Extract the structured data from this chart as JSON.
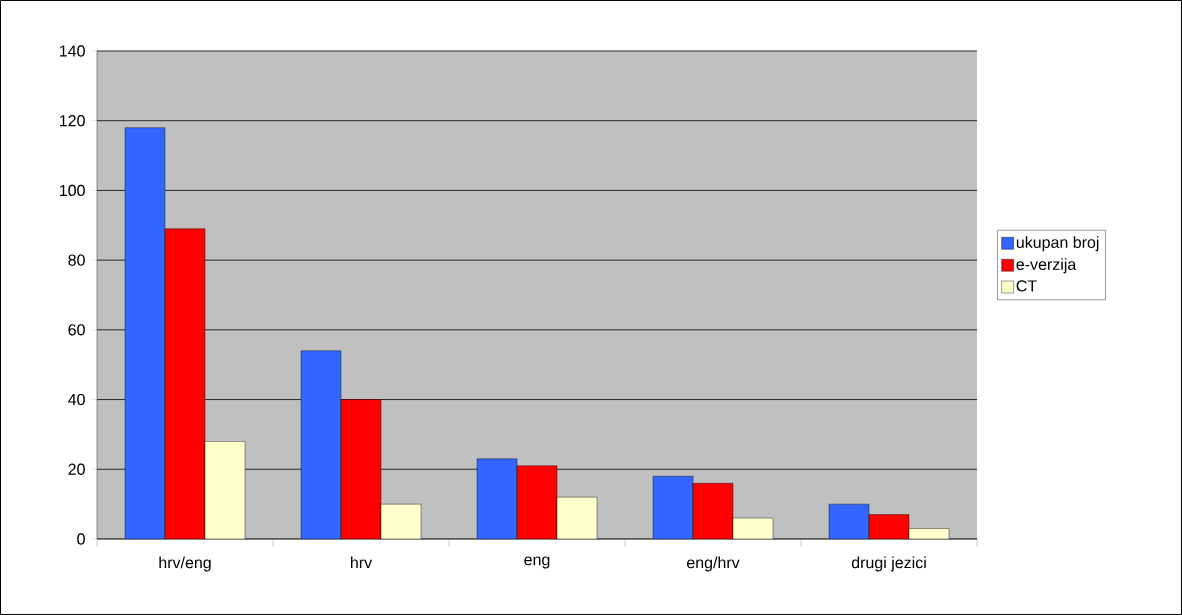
{
  "chart_data": {
    "type": "bar",
    "categories": [
      "hrv/eng",
      "hrv",
      "eng",
      "eng/hrv",
      "drugi jezici"
    ],
    "series": [
      {
        "name": "ukupan broj",
        "color": "#3366ff",
        "values": [
          118,
          54,
          23,
          18,
          10
        ]
      },
      {
        "name": "e-verzija",
        "color": "#ff0000",
        "values": [
          89,
          40,
          21,
          16,
          7
        ]
      },
      {
        "name": "CT",
        "color": "#ffffcc",
        "values": [
          28,
          10,
          12,
          6,
          3
        ]
      }
    ],
    "ylim": [
      0,
      140
    ],
    "yticks": [
      0,
      20,
      40,
      60,
      80,
      100,
      120,
      140
    ],
    "grid": "y",
    "legend": "right"
  }
}
